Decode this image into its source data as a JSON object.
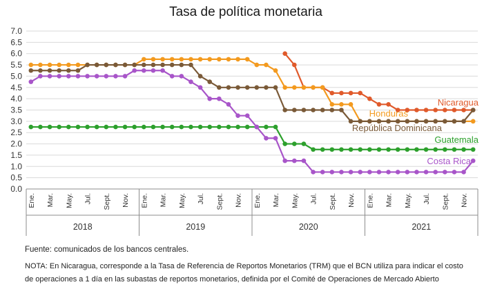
{
  "source": "Fuente: comunicados de los bancos centrales.",
  "note_line1": "NOTA: En Nicaragua, corresponde a la Tasa de Referencia de Reportos Monetarios (TRM) que el BCN utiliza para indicar el costo",
  "note_line2": "de operaciones a 1 día en las subastas de reportos monetarios, definida por el Comité de Operaciones de Mercado Abierto",
  "chart_data": {
    "type": "line",
    "title": "Tasa de política monetaria",
    "ylim": [
      0,
      7
    ],
    "yticks": [
      "0.0",
      "0.5",
      "1.0",
      "1.5",
      "2.0",
      "2.5",
      "3.0",
      "3.5",
      "4.0",
      "4.5",
      "5.0",
      "5.5",
      "6.0",
      "6.5",
      "7.0"
    ],
    "grid": true,
    "x_tick_labels": [
      "Ene.",
      "Mar.",
      "May.",
      "Jul.",
      "Sept.",
      "Nov.",
      "Ene.",
      "Mar.",
      "May.",
      "Jul.",
      "Sept.",
      "Nov.",
      "Ene.",
      "Mar.",
      "May.",
      "Jul.",
      "Sept.",
      "Nov.",
      "Ene.",
      "Mar.",
      "May.",
      "Jul.",
      "Sept.",
      "Nov."
    ],
    "years": [
      "2018",
      "2019",
      "2020",
      "2021"
    ],
    "series": [
      {
        "name": "Nicaragua",
        "color": "#e05a2b",
        "start_index": 27,
        "values": [
          6.0,
          5.5,
          4.5,
          4.5,
          4.5,
          4.25,
          4.25,
          4.25,
          4.25,
          4.0,
          3.75,
          3.75,
          3.5,
          3.5,
          3.5,
          3.5,
          3.5,
          3.5,
          3.5,
          3.5,
          3.5
        ]
      },
      {
        "name": "Honduras",
        "color": "#f39a1f",
        "start_index": 0,
        "values": [
          5.5,
          5.5,
          5.5,
          5.5,
          5.5,
          5.5,
          5.5,
          5.5,
          5.5,
          5.5,
          5.5,
          5.5,
          5.75,
          5.75,
          5.75,
          5.75,
          5.75,
          5.75,
          5.75,
          5.75,
          5.75,
          5.75,
          5.75,
          5.75,
          5.5,
          5.5,
          5.25,
          4.5,
          4.5,
          4.5,
          4.5,
          4.5,
          3.75,
          3.75,
          3.75,
          3.0,
          3.0,
          3.0,
          3.0,
          3.0,
          3.0,
          3.0,
          3.0,
          3.0,
          3.0,
          3.0,
          3.0,
          3.0
        ]
      },
      {
        "name": "República Dominicana",
        "color": "#7a5a38",
        "start_index": 0,
        "values": [
          5.25,
          5.25,
          5.25,
          5.25,
          5.25,
          5.25,
          5.5,
          5.5,
          5.5,
          5.5,
          5.5,
          5.5,
          5.5,
          5.5,
          5.5,
          5.5,
          5.5,
          5.5,
          5.0,
          4.75,
          4.5,
          4.5,
          4.5,
          4.5,
          4.5,
          4.5,
          4.5,
          3.5,
          3.5,
          3.5,
          3.5,
          3.5,
          3.5,
          3.5,
          3.0,
          3.0,
          3.0,
          3.0,
          3.0,
          3.0,
          3.0,
          3.0,
          3.0,
          3.0,
          3.0,
          3.0,
          3.0,
          3.5
        ]
      },
      {
        "name": "Guatemala",
        "color": "#2ca02c",
        "start_index": 0,
        "values": [
          2.75,
          2.75,
          2.75,
          2.75,
          2.75,
          2.75,
          2.75,
          2.75,
          2.75,
          2.75,
          2.75,
          2.75,
          2.75,
          2.75,
          2.75,
          2.75,
          2.75,
          2.75,
          2.75,
          2.75,
          2.75,
          2.75,
          2.75,
          2.75,
          2.75,
          2.75,
          2.75,
          2.0,
          2.0,
          2.0,
          1.75,
          1.75,
          1.75,
          1.75,
          1.75,
          1.75,
          1.75,
          1.75,
          1.75,
          1.75,
          1.75,
          1.75,
          1.75,
          1.75,
          1.75,
          1.75,
          1.75,
          1.75
        ]
      },
      {
        "name": "Costa Rica",
        "color": "#a855c9",
        "start_index": 0,
        "values": [
          4.75,
          5.0,
          5.0,
          5.0,
          5.0,
          5.0,
          5.0,
          5.0,
          5.0,
          5.0,
          5.0,
          5.25,
          5.25,
          5.25,
          5.25,
          5.0,
          5.0,
          4.75,
          4.5,
          4.0,
          4.0,
          3.75,
          3.25,
          3.25,
          2.75,
          2.25,
          2.25,
          1.25,
          1.25,
          1.25,
          0.75,
          0.75,
          0.75,
          0.75,
          0.75,
          0.75,
          0.75,
          0.75,
          0.75,
          0.75,
          0.75,
          0.75,
          0.75,
          0.75,
          0.75,
          0.75,
          0.75,
          1.25
        ]
      }
    ]
  }
}
